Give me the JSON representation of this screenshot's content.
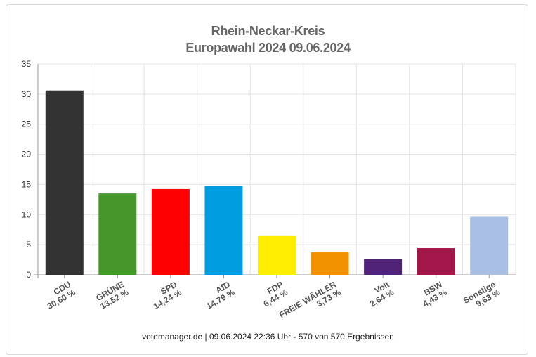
{
  "chart_data": {
    "type": "bar",
    "title": "Rhein-Neckar-Kreis",
    "subtitle": "Europawahl 2024 09.06.2024",
    "categories": [
      "CDU",
      "GRÜNE",
      "SPD",
      "AfD",
      "FDP",
      "FREIE WÄHLER",
      "Volt",
      "BSW",
      "Sonstige"
    ],
    "values": [
      30.6,
      13.52,
      14.24,
      14.79,
      6.44,
      3.73,
      2.64,
      4.43,
      9.63
    ],
    "value_labels": [
      "30,60 %",
      "13,52 %",
      "14,24 %",
      "14,79 %",
      "6,44 %",
      "3,73 %",
      "2,64 %",
      "4,43 %",
      "9,63 %"
    ],
    "colors": [
      "#333333",
      "#46962b",
      "#ff0000",
      "#009ee0",
      "#ffed00",
      "#f39200",
      "#502379",
      "#a2164a",
      "#aabfe6"
    ],
    "ylim": [
      0,
      35
    ],
    "yticks": [
      0,
      5,
      10,
      15,
      20,
      25,
      30,
      35
    ],
    "grid": true,
    "xlabel": "",
    "ylabel": ""
  },
  "footer": "votemanager.de | 09.06.2024 22:36 Uhr - 570 von 570 Ergebnissen"
}
